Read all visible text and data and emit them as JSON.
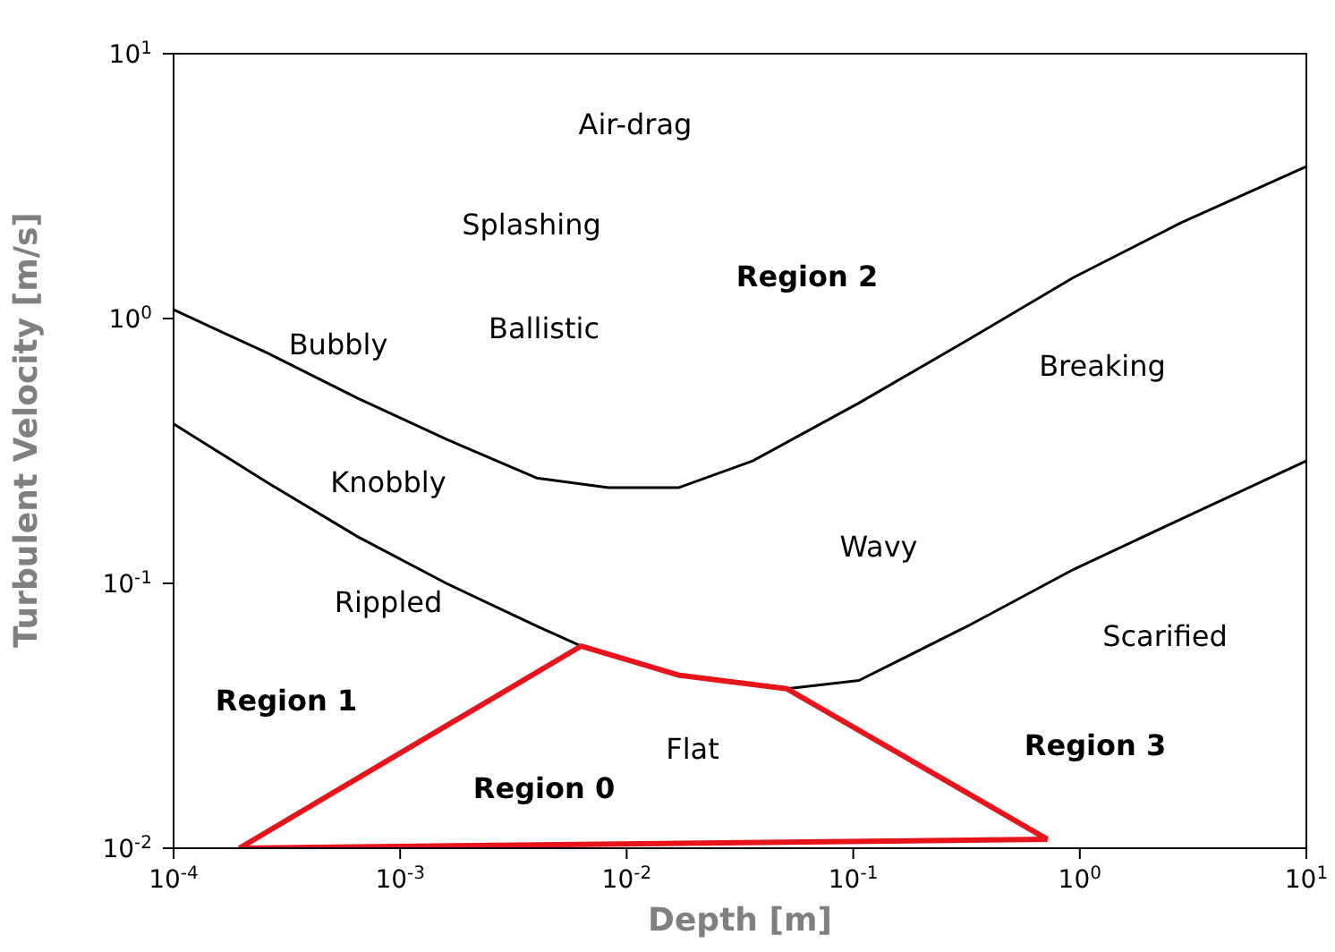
{
  "chart_data": {
    "type": "line",
    "xlabel": "Depth [m]",
    "ylabel": "Turbulent Velocity [m/s]",
    "log": "xy",
    "marker": "none",
    "line_style": "solid",
    "xlim": [
      0.0001,
      10
    ],
    "ylim": [
      0.01,
      10
    ],
    "xticks": [
      {
        "value": 0.0001,
        "label": "10$^{-4}$"
      },
      {
        "value": 0.001,
        "label": "10$^{-3}$"
      },
      {
        "value": 0.01,
        "label": "10$^{-2}$"
      },
      {
        "value": 0.1,
        "label": "10$^{-1}$"
      },
      {
        "value": 1,
        "label": "10$^{0}$"
      },
      {
        "value": 10,
        "label": "10$^{1}$"
      }
    ],
    "yticks": [
      {
        "value": 0.01,
        "label": "10$^{-2}$"
      },
      {
        "value": 0.1,
        "label": "10$^{-1}$"
      },
      {
        "value": 1,
        "label": "10$^{0}$"
      },
      {
        "value": 10,
        "label": "10$^{1}$"
      }
    ],
    "series": [
      {
        "color": "#000000",
        "x": [
          0.0001,
          0.00026,
          0.00065,
          0.0016,
          0.004,
          0.0083,
          0.017,
          0.036,
          0.106,
          0.32,
          0.94,
          2.8,
          10
        ],
        "values": [
          1.08,
          0.74,
          0.5,
          0.35,
          0.25,
          0.23,
          0.23,
          0.29,
          0.48,
          0.83,
          1.43,
          2.3,
          3.75
        ]
      },
      {
        "color": "#000000",
        "x": [
          0.0001,
          0.00026,
          0.00065,
          0.0016,
          0.004,
          0.0063,
          0.017,
          0.051,
          0.106,
          0.32,
          0.94,
          2.8,
          10
        ],
        "values": [
          0.4,
          0.24,
          0.15,
          0.1,
          0.069,
          0.058,
          null,
          0.04,
          0.043,
          0.069,
          0.113,
          0.175,
          0.29
        ]
      },
      {
        "color": "#e8141b",
        "x": [
          0.000195,
          0.0063,
          0.017,
          0.051,
          0.72
        ],
        "values": [
          0.01,
          0.058,
          0.045,
          0.04,
          0.0108
        ]
      },
      {
        "color": "#e8141b",
        "x": [
          0.000195,
          0.72
        ],
        "values": [
          0.01,
          0.0108
        ]
      }
    ],
    "annotations": [
      "Air-drag",
      "Splashing",
      "Region 2",
      "Ballistic",
      "Bubbly",
      "Breaking",
      "Knobbly",
      "Wavy",
      "Rippled",
      "Scarified",
      "Region 1",
      "Flat",
      "Region 3",
      "Region 0"
    ]
  }
}
